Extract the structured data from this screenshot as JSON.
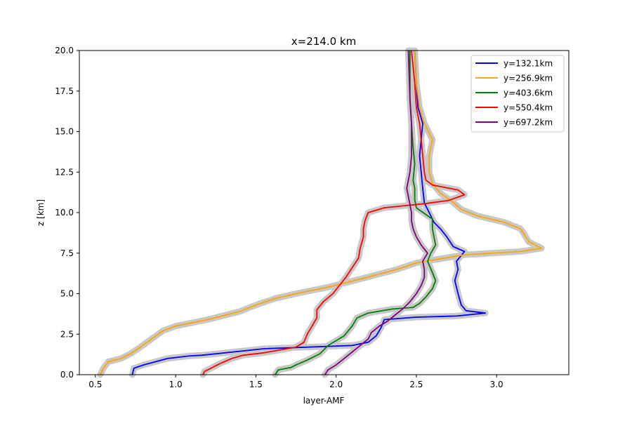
{
  "chart_data": {
    "type": "line",
    "title": "x=214.0 km",
    "xlabel": "layer-AMF",
    "ylabel": "z [km]",
    "xlim": [
      0.4,
      3.45
    ],
    "ylim": [
      0,
      20
    ],
    "xticks": [
      "0.5",
      "1.0",
      "1.5",
      "2.0",
      "2.5",
      "3.0"
    ],
    "yticks": [
      "0.0",
      "2.5",
      "5.0",
      "7.5",
      "10.0",
      "12.5",
      "15.0",
      "17.5",
      "20.0"
    ],
    "legend_position": "top-right",
    "grid": false,
    "series": [
      {
        "name": "y=132.1km",
        "color": "#0000ff",
        "points": [
          [
            0.73,
            0.0
          ],
          [
            0.74,
            0.4
          ],
          [
            0.8,
            0.6
          ],
          [
            0.95,
            1.0
          ],
          [
            1.08,
            1.15
          ],
          [
            1.16,
            1.2
          ],
          [
            1.26,
            1.3
          ],
          [
            1.55,
            1.6
          ],
          [
            2.1,
            1.8
          ],
          [
            2.2,
            2.0
          ],
          [
            2.25,
            2.4
          ],
          [
            2.28,
            2.9
          ],
          [
            2.3,
            3.4
          ],
          [
            2.5,
            3.55
          ],
          [
            2.75,
            3.62
          ],
          [
            2.93,
            3.8
          ],
          [
            2.81,
            3.95
          ],
          [
            2.78,
            4.3
          ],
          [
            2.76,
            5.0
          ],
          [
            2.74,
            5.8
          ],
          [
            2.76,
            6.5
          ],
          [
            2.75,
            7.0
          ],
          [
            2.8,
            7.6
          ],
          [
            2.73,
            7.9
          ],
          [
            2.69,
            8.5
          ],
          [
            2.65,
            9.0
          ],
          [
            2.61,
            9.4
          ],
          [
            2.58,
            10.0
          ],
          [
            2.55,
            10.6
          ],
          [
            2.54,
            11.5
          ],
          [
            2.53,
            12.5
          ],
          [
            2.52,
            13.5
          ],
          [
            2.53,
            14.5
          ],
          [
            2.54,
            15.5
          ],
          [
            2.51,
            16.5
          ],
          [
            2.5,
            18.0
          ],
          [
            2.49,
            20.0
          ]
        ]
      },
      {
        "name": "y=256.9km",
        "color": "#ffa500",
        "points": [
          [
            0.53,
            0.0
          ],
          [
            0.55,
            0.4
          ],
          [
            0.58,
            0.8
          ],
          [
            0.66,
            1.0
          ],
          [
            0.72,
            1.3
          ],
          [
            0.78,
            1.7
          ],
          [
            0.85,
            2.2
          ],
          [
            0.92,
            2.7
          ],
          [
            1.0,
            3.0
          ],
          [
            1.2,
            3.4
          ],
          [
            1.4,
            3.9
          ],
          [
            1.5,
            4.3
          ],
          [
            1.62,
            4.7
          ],
          [
            1.75,
            5.0
          ],
          [
            1.95,
            5.4
          ],
          [
            2.15,
            5.9
          ],
          [
            2.38,
            6.5
          ],
          [
            2.5,
            6.9
          ],
          [
            2.8,
            7.4
          ],
          [
            3.15,
            7.6
          ],
          [
            3.28,
            7.8
          ],
          [
            3.2,
            8.2
          ],
          [
            3.17,
            8.7
          ],
          [
            3.15,
            9.0
          ],
          [
            3.05,
            9.4
          ],
          [
            2.88,
            9.8
          ],
          [
            2.78,
            10.2
          ],
          [
            2.72,
            10.7
          ],
          [
            2.65,
            11.2
          ],
          [
            2.6,
            11.8
          ],
          [
            2.58,
            12.5
          ],
          [
            2.58,
            13.5
          ],
          [
            2.6,
            14.5
          ],
          [
            2.55,
            15.5
          ],
          [
            2.52,
            16.5
          ],
          [
            2.5,
            18.0
          ],
          [
            2.49,
            20.0
          ]
        ]
      },
      {
        "name": "y=403.6km",
        "color": "#008000",
        "points": [
          [
            1.62,
            0.0
          ],
          [
            1.64,
            0.3
          ],
          [
            1.72,
            0.45
          ],
          [
            1.75,
            0.6
          ],
          [
            1.82,
            0.9
          ],
          [
            1.9,
            1.3
          ],
          [
            1.95,
            1.8
          ],
          [
            2.05,
            2.4
          ],
          [
            2.1,
            3.0
          ],
          [
            2.13,
            3.5
          ],
          [
            2.2,
            3.8
          ],
          [
            2.35,
            4.05
          ],
          [
            2.48,
            4.15
          ],
          [
            2.52,
            4.4
          ],
          [
            2.56,
            4.8
          ],
          [
            2.6,
            5.3
          ],
          [
            2.62,
            5.8
          ],
          [
            2.6,
            6.3
          ],
          [
            2.57,
            7.0
          ],
          [
            2.59,
            7.5
          ],
          [
            2.62,
            8.0
          ],
          [
            2.61,
            8.5
          ],
          [
            2.6,
            9.0
          ],
          [
            2.6,
            9.6
          ],
          [
            2.55,
            9.95
          ],
          [
            2.5,
            10.3
          ],
          [
            2.49,
            10.8
          ],
          [
            2.49,
            11.5
          ],
          [
            2.48,
            12.0
          ],
          [
            2.49,
            13.0
          ],
          [
            2.48,
            14.0
          ],
          [
            2.47,
            15.5
          ],
          [
            2.46,
            17.0
          ],
          [
            2.46,
            20.0
          ]
        ]
      },
      {
        "name": "y=550.4km",
        "color": "#ff0000",
        "points": [
          [
            1.17,
            0.0
          ],
          [
            1.18,
            0.2
          ],
          [
            1.22,
            0.4
          ],
          [
            1.28,
            0.7
          ],
          [
            1.35,
            1.0
          ],
          [
            1.42,
            1.2
          ],
          [
            1.55,
            1.35
          ],
          [
            1.75,
            1.7
          ],
          [
            1.8,
            2.0
          ],
          [
            1.82,
            2.5
          ],
          [
            1.85,
            3.0
          ],
          [
            1.88,
            3.5
          ],
          [
            1.88,
            4.0
          ],
          [
            1.92,
            4.5
          ],
          [
            1.98,
            5.0
          ],
          [
            2.02,
            5.5
          ],
          [
            2.06,
            6.0
          ],
          [
            2.1,
            6.6
          ],
          [
            2.14,
            7.2
          ],
          [
            2.15,
            7.8
          ],
          [
            2.17,
            8.5
          ],
          [
            2.17,
            9.0
          ],
          [
            2.18,
            9.5
          ],
          [
            2.2,
            10.0
          ],
          [
            2.3,
            10.3
          ],
          [
            2.55,
            10.55
          ],
          [
            2.7,
            10.75
          ],
          [
            2.8,
            11.1
          ],
          [
            2.76,
            11.4
          ],
          [
            2.6,
            11.7
          ],
          [
            2.56,
            12.0
          ],
          [
            2.55,
            12.5
          ],
          [
            2.54,
            13.5
          ],
          [
            2.53,
            14.5
          ],
          [
            2.52,
            15.5
          ],
          [
            2.5,
            16.5
          ],
          [
            2.49,
            18.0
          ],
          [
            2.47,
            20.0
          ]
        ]
      },
      {
        "name": "y=697.2km",
        "color": "#800080",
        "points": [
          [
            1.93,
            0.0
          ],
          [
            1.95,
            0.3
          ],
          [
            2.0,
            0.6
          ],
          [
            2.05,
            1.0
          ],
          [
            2.1,
            1.4
          ],
          [
            2.15,
            1.8
          ],
          [
            2.2,
            2.2
          ],
          [
            2.22,
            2.6
          ],
          [
            2.27,
            3.0
          ],
          [
            2.32,
            3.3
          ],
          [
            2.37,
            3.7
          ],
          [
            2.42,
            4.1
          ],
          [
            2.46,
            4.5
          ],
          [
            2.5,
            5.0
          ],
          [
            2.53,
            5.5
          ],
          [
            2.55,
            6.0
          ],
          [
            2.55,
            6.5
          ],
          [
            2.54,
            7.0
          ],
          [
            2.57,
            7.5
          ],
          [
            2.53,
            8.0
          ],
          [
            2.5,
            8.5
          ],
          [
            2.48,
            9.0
          ],
          [
            2.47,
            9.5
          ],
          [
            2.47,
            10.0
          ],
          [
            2.46,
            10.5
          ],
          [
            2.45,
            11.0
          ],
          [
            2.44,
            11.5
          ],
          [
            2.45,
            12.0
          ],
          [
            2.46,
            12.5
          ],
          [
            2.47,
            13.5
          ],
          [
            2.47,
            14.5
          ],
          [
            2.47,
            15.5
          ],
          [
            2.46,
            17.0
          ],
          [
            2.45,
            20.0
          ]
        ]
      }
    ]
  }
}
